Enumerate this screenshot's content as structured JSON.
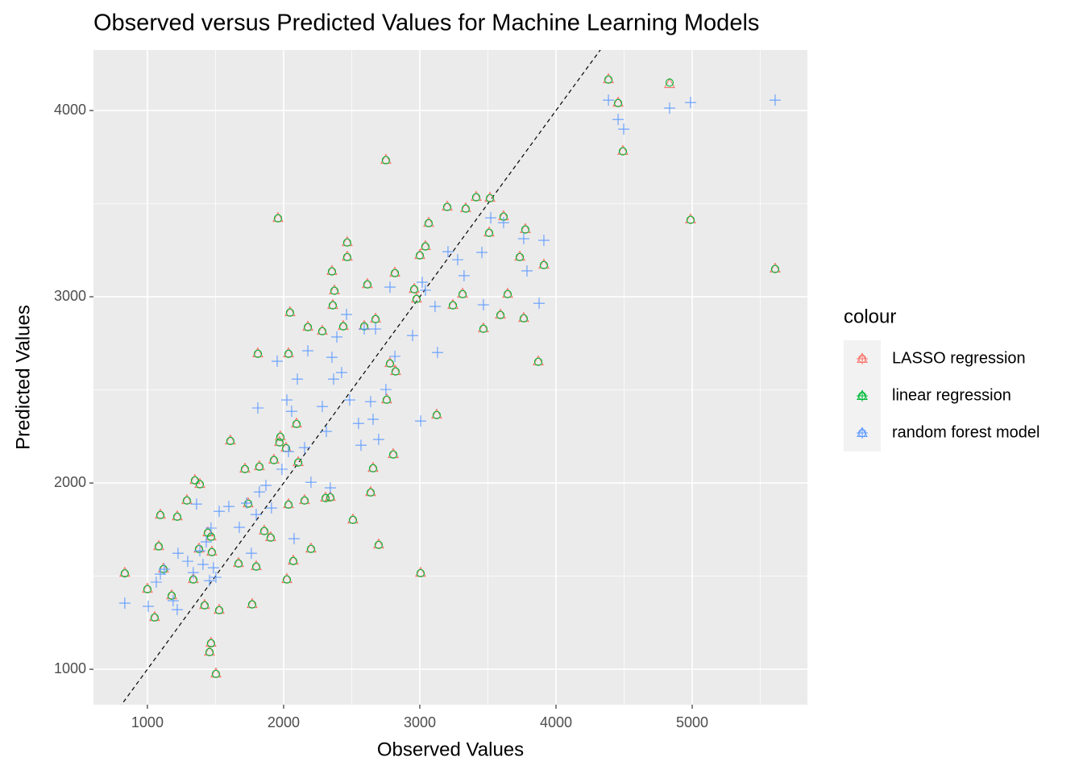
{
  "chart_data": {
    "type": "scatter",
    "title": "Observed versus Predicted Values for Machine Learning Models",
    "x_label": "Observed Values",
    "y_label": "Predicted Values",
    "legend_title": "colour",
    "legend_position": "right",
    "grid": true,
    "reference_line": {
      "slope": 1,
      "intercept": 0
    },
    "xlim": [
      604,
      5846
    ],
    "ylim": [
      810,
      4325
    ],
    "xticks": [
      1000,
      2000,
      3000,
      4000,
      5000
    ],
    "yticks": [
      1000,
      2000,
      3000,
      4000
    ],
    "series": [
      {
        "name": "LASSO regression",
        "color": "#F8766D",
        "marker": "triangle",
        "x": [
          834,
          1000,
          1053,
          1083,
          1095,
          1118,
          1178,
          1219,
          1290,
          1337,
          1349,
          1385,
          1420,
          1444,
          1456,
          1467,
          1473,
          1503,
          1527,
          1609,
          1669,
          1716,
          1740,
          1769,
          1799,
          1811,
          1822,
          1858,
          1905,
          1929,
          1959,
          1976,
          2024,
          2036,
          2047,
          2071,
          2095,
          2107,
          2154,
          2178,
          2201,
          2284,
          2308,
          2343,
          2355,
          2361,
          2373,
          2509,
          2592,
          2615,
          2639,
          2657,
          2675,
          2698,
          2751,
          2757,
          2781,
          2805,
          2817,
          2822,
          3006,
          3000,
          3041,
          3065,
          3124,
          3201,
          3243,
          3314,
          3337,
          3414,
          3467,
          3509,
          3515,
          3592,
          3615,
          3645,
          3734,
          3763,
          3775,
          3870,
          3911,
          4385,
          4456,
          4491,
          4834,
          4988,
          5609,
          2959,
          2976,
          2467,
          2467,
          2438,
          2036,
          1970,
          2018,
          1467,
          1379
        ],
        "y": [
          1519,
          1433,
          1281,
          1662,
          1831,
          1541,
          1398,
          1822,
          1909,
          1485,
          2017,
          1996,
          1346,
          1736,
          1095,
          1143,
          1632,
          978,
          1320,
          2229,
          1571,
          2078,
          1892,
          1351,
          1554,
          2697,
          2091,
          1745,
          1710,
          2126,
          3424,
          2251,
          1485,
          2697,
          2918,
          1584,
          2320,
          2113,
          1909,
          2840,
          1649,
          2818,
          1922,
          1926,
          3139,
          2957,
          3035,
          1805,
          2844,
          3069,
          1952,
          2082,
          2883,
          1671,
          3736,
          2450,
          2645,
          2156,
          3130,
          2602,
          1519,
          3225,
          3273,
          3398,
          2368,
          3485,
          2957,
          3017,
          3476,
          3537,
          2831,
          3346,
          3532,
          2905,
          3433,
          3017,
          3216,
          2887,
          3364,
          2654,
          3173,
          4169,
          4043,
          3784,
          4143,
          3416,
          3152,
          3043,
          2991,
          3294,
          3216,
          2844,
          1887,
          2221,
          2190,
          1714,
          1649
        ]
      },
      {
        "name": "linear regression",
        "color": "#00BA38",
        "marker": "circle",
        "x": [
          834,
          1000,
          1053,
          1083,
          1095,
          1118,
          1178,
          1219,
          1290,
          1337,
          1349,
          1385,
          1420,
          1444,
          1456,
          1467,
          1473,
          1503,
          1527,
          1609,
          1669,
          1716,
          1740,
          1769,
          1799,
          1811,
          1822,
          1858,
          1905,
          1929,
          1959,
          1976,
          2024,
          2036,
          2047,
          2071,
          2095,
          2107,
          2154,
          2178,
          2201,
          2284,
          2308,
          2343,
          2355,
          2361,
          2373,
          2509,
          2592,
          2615,
          2639,
          2657,
          2675,
          2698,
          2751,
          2757,
          2781,
          2805,
          2817,
          2822,
          3006,
          3000,
          3041,
          3065,
          3124,
          3201,
          3243,
          3314,
          3337,
          3414,
          3467,
          3509,
          3515,
          3592,
          3615,
          3645,
          3734,
          3763,
          3775,
          3870,
          3911,
          4385,
          4456,
          4491,
          4834,
          4988,
          5609,
          2959,
          2976,
          2467,
          2467,
          2438,
          2036,
          1970,
          2018,
          1467,
          1379
        ],
        "y": [
          1515,
          1430,
          1278,
          1660,
          1828,
          1538,
          1395,
          1819,
          1906,
          1482,
          2014,
          1993,
          1343,
          1733,
          1092,
          1140,
          1629,
          975,
          1317,
          2226,
          1568,
          2075,
          1889,
          1348,
          1551,
          2694,
          2088,
          1742,
          1707,
          2123,
          3421,
          2248,
          1482,
          2694,
          2915,
          1581,
          2317,
          2110,
          1906,
          2837,
          1646,
          2815,
          1919,
          1923,
          3136,
          2954,
          3032,
          1802,
          2841,
          3066,
          1949,
          2079,
          2880,
          1668,
          3733,
          2447,
          2642,
          2153,
          3127,
          2599,
          1516,
          3222,
          3270,
          3395,
          2365,
          3482,
          2954,
          3014,
          3473,
          3534,
          2828,
          3343,
          3529,
          2902,
          3430,
          3014,
          3213,
          2884,
          3361,
          2651,
          3170,
          4166,
          4040,
          3781,
          4150,
          3413,
          3149,
          3040,
          2988,
          3291,
          3213,
          2841,
          1884,
          2218,
          2187,
          1711,
          1646
        ]
      },
      {
        "name": "random forest model",
        "color": "#619CFF",
        "marker": "cross",
        "x": [
          834,
          1006,
          1065,
          1095,
          1124,
          1189,
          1219,
          1225,
          1296,
          1337,
          1361,
          1385,
          1408,
          1432,
          1456,
          1467,
          1485,
          1503,
          1527,
          1598,
          1675,
          1728,
          1763,
          1799,
          1811,
          1822,
          1870,
          1911,
          1953,
          1988,
          2024,
          2036,
          2059,
          2077,
          2101,
          2154,
          2178,
          2201,
          2284,
          2314,
          2343,
          2355,
          2367,
          2391,
          2426,
          2462,
          2485,
          2550,
          2568,
          2592,
          2639,
          2657,
          2675,
          2698,
          2751,
          2781,
          2817,
          2947,
          3006,
          3018,
          3112,
          3130,
          3207,
          3278,
          3325,
          3456,
          3467,
          3521,
          3615,
          3763,
          3787,
          3876,
          3911,
          4385,
          4456,
          4497,
          4834,
          4988,
          5609,
          3041
        ],
        "y": [
          1355,
          1338,
          1468,
          1511,
          1537,
          1368,
          1320,
          1623,
          1580,
          1519,
          1887,
          1636,
          1563,
          1684,
          1476,
          1758,
          1545,
          1494,
          1848,
          1874,
          1762,
          1892,
          1623,
          1831,
          2403,
          1952,
          1987,
          1866,
          2654,
          2074,
          2446,
          2169,
          2385,
          1701,
          2558,
          2190,
          2710,
          2004,
          2411,
          2277,
          1974,
          2675,
          2558,
          2784,
          2593,
          2905,
          2446,
          2320,
          2203,
          2827,
          2437,
          2342,
          2827,
          2234,
          2502,
          3052,
          2680,
          2792,
          2333,
          3078,
          2948,
          2701,
          3242,
          3199,
          3113,
          3238,
          2957,
          3424,
          3398,
          3312,
          3139,
          2965,
          3303,
          4056,
          3952,
          3900,
          4013,
          4043,
          4056,
          3035
        ]
      }
    ]
  }
}
